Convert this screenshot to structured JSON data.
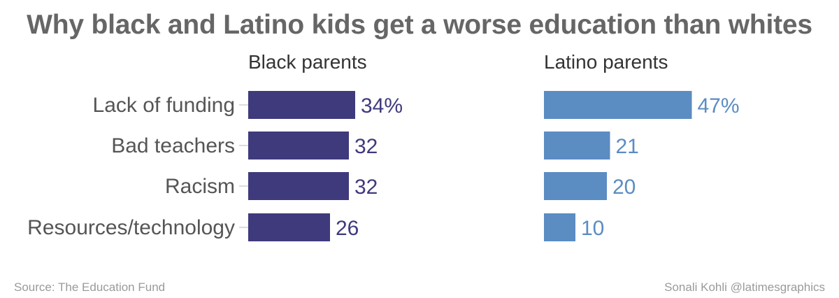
{
  "title": "Why black and Latino kids get a worse education than whites",
  "source": "Source: The Education Fund",
  "credit": "Sonali Kohli @latimesgraphics",
  "chart_data": {
    "type": "bar",
    "orientation": "horizontal",
    "categories": [
      "Lack of funding",
      "Bad teachers",
      "Racism",
      "Resources/technology"
    ],
    "series": [
      {
        "name": "Black parents",
        "values": [
          34,
          32,
          32,
          26
        ],
        "labels": [
          "34%",
          "32",
          "32",
          "26"
        ],
        "color": "#3f3a7c"
      },
      {
        "name": "Latino parents",
        "values": [
          47,
          21,
          20,
          10
        ],
        "labels": [
          "47%",
          "21",
          "20",
          "10"
        ],
        "color": "#5b8cc2"
      }
    ],
    "unit": "%",
    "grid": false
  }
}
